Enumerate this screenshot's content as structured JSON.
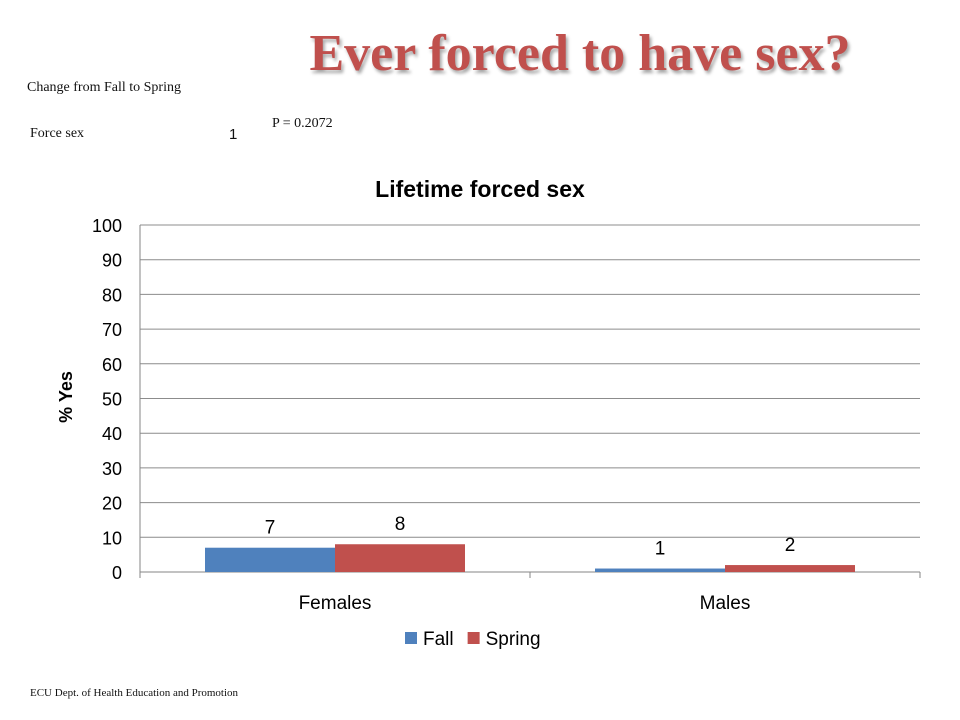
{
  "slide": {
    "title": "Ever forced to have sex?",
    "change_label": "Change  from Fall to Spring",
    "row_label": "Force sex",
    "row_value": "1",
    "p_value": "P = 0.2072",
    "footer": "ECU Dept. of Health Education and Promotion"
  },
  "chart_data": {
    "type": "bar",
    "title": "Lifetime forced sex",
    "xlabel": "",
    "ylabel": "% Yes",
    "ylim": [
      0,
      100
    ],
    "yticks": [
      0,
      10,
      20,
      30,
      40,
      50,
      60,
      70,
      80,
      90,
      100
    ],
    "categories": [
      "Females",
      "Males"
    ],
    "series": [
      {
        "name": "Fall",
        "values": [
          7,
          1
        ],
        "labels": [
          "7",
          "1"
        ],
        "color": "#4f81bd"
      },
      {
        "name": "Spring",
        "values": [
          8,
          2
        ],
        "labels": [
          "8",
          "2"
        ],
        "color": "#c0504d"
      }
    ],
    "grid": true,
    "legend": "bottom"
  }
}
